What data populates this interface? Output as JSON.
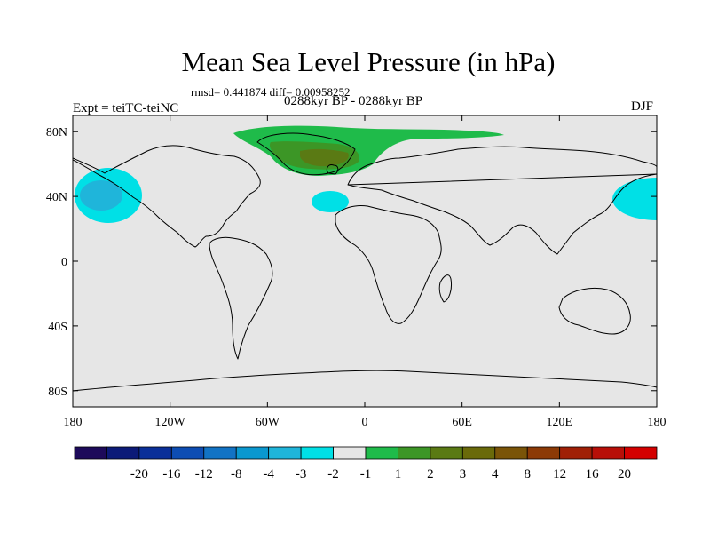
{
  "header": {
    "title": "Mean Sea Level Pressure (in hPa)",
    "stats": "rmsd= 0.441874 diff= 0.00958252",
    "period": "0288kyr BP - 0288kyr BP",
    "expt": "Expt = teiTC-teiNC",
    "season": "DJF"
  },
  "chart_data": {
    "type": "heatmap",
    "title": "Mean Sea Level Pressure (in hPa)",
    "subtitle": "0288kyr BP - 0288kyr BP",
    "units": "hPa",
    "x_axis": {
      "label": "",
      "range": [
        -180,
        180
      ],
      "ticks": [
        {
          "value": -180,
          "label": "180"
        },
        {
          "value": -120,
          "label": "120W"
        },
        {
          "value": -60,
          "label": "60W"
        },
        {
          "value": 0,
          "label": "0"
        },
        {
          "value": 60,
          "label": "60E"
        },
        {
          "value": 120,
          "label": "120E"
        },
        {
          "value": 180,
          "label": "180"
        }
      ]
    },
    "y_axis": {
      "label": "",
      "range": [
        -90,
        90
      ],
      "ticks": [
        {
          "value": 80,
          "label": "80N"
        },
        {
          "value": 40,
          "label": "40N"
        },
        {
          "value": 0,
          "label": "0"
        },
        {
          "value": -40,
          "label": "40S"
        },
        {
          "value": -80,
          "label": "80S"
        }
      ]
    },
    "colorbar": {
      "colors": [
        "#1d0a5a",
        "#0c1a78",
        "#0a2f99",
        "#0d4db3",
        "#1273c4",
        "#0a98cf",
        "#1fb5da",
        "#00e0e6",
        "#e6e6e6",
        "#1fbb4a",
        "#3c9626",
        "#5a7a14",
        "#6a6a0a",
        "#7a5408",
        "#8c3a06",
        "#a02006",
        "#b80f08",
        "#d40000"
      ],
      "labels": [
        "-20",
        "-16",
        "-12",
        "-8",
        "-4",
        "-3",
        "-2",
        "-1",
        "1",
        "2",
        "3",
        "4",
        "8",
        "12",
        "16",
        "20"
      ]
    },
    "regions": [
      {
        "name": "north-pacific-high-a",
        "lon": -160,
        "lat": 41,
        "level": "-1 to -2"
      },
      {
        "name": "north-pacific-high-b",
        "lon": -165,
        "lat": 42,
        "level": "-2 to -3"
      },
      {
        "name": "north-atlantic-low",
        "lon": -25,
        "lat": 38,
        "level": "-1 to -2"
      },
      {
        "name": "west-pacific-low",
        "lon": 170,
        "lat": 40,
        "level": "-1 to -2"
      },
      {
        "name": "arctic-high",
        "lon": -30,
        "lat": 80,
        "level": "1 to 2"
      },
      {
        "name": "greenland-high-a",
        "lon": -35,
        "lat": 70,
        "level": "2 to 3"
      },
      {
        "name": "greenland-high-b",
        "lon": -30,
        "lat": 67,
        "level": "3 to 4"
      }
    ]
  }
}
